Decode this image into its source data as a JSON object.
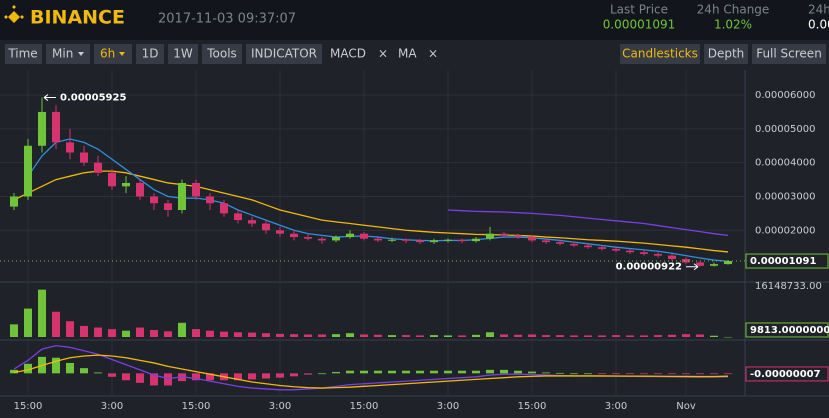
{
  "header": {
    "logo": "BINANCE",
    "datetime": "2017-11-03 09:37:07",
    "stats": [
      {
        "label": "Last Price",
        "value": "0.00001091"
      },
      {
        "label": "24h Change",
        "value": "1.02%"
      },
      {
        "label": "24h",
        "value": "0.000"
      }
    ]
  },
  "toolbar": {
    "left": [
      "Time",
      "Min",
      "6h",
      "1D",
      "1W",
      "Tools",
      "INDICATOR",
      "MACD",
      "×",
      "MA",
      "×"
    ],
    "right": [
      "Candlesticks",
      "Depth",
      "Full Screen"
    ]
  },
  "chart_data": [
    {
      "type": "candlestick",
      "categories": [
        null,
        "15:00",
        null,
        null,
        null,
        null,
        null,
        "3:00",
        null,
        null,
        null,
        null,
        null,
        "15:00",
        null,
        null,
        null,
        null,
        null,
        "3:00",
        null,
        null,
        null,
        null,
        null,
        "15:00",
        null,
        null,
        null,
        null,
        null,
        "3:00",
        null,
        null,
        null,
        null,
        null,
        "15:00",
        null,
        null,
        null,
        null,
        null,
        "3:00",
        null,
        null,
        null,
        null,
        "Nov",
        null,
        null,
        null
      ],
      "open": [
        2.7e-05,
        3e-05,
        4.5e-05,
        5.5e-05,
        4.6e-05,
        4.3e-05,
        4e-05,
        3.7e-05,
        3.3e-05,
        3.4e-05,
        3e-05,
        2.8e-05,
        2.6e-05,
        3.4e-05,
        3e-05,
        2.8e-05,
        2.5e-05,
        2.3e-05,
        2.2e-05,
        2e-05,
        1.9e-05,
        1.8e-05,
        1.75e-05,
        1.7e-05,
        1.8e-05,
        1.9e-05,
        1.75e-05,
        1.7e-05,
        1.72e-05,
        1.7e-05,
        1.65e-05,
        1.7e-05,
        1.72e-05,
        1.68e-05,
        1.75e-05,
        1.9e-05,
        1.85e-05,
        1.8e-05,
        1.7e-05,
        1.65e-05,
        1.6e-05,
        1.55e-05,
        1.5e-05,
        1.45e-05,
        1.4e-05,
        1.35e-05,
        1.3e-05,
        1.25e-05,
        1.15e-05,
        1.05e-05,
        9.5e-06,
        1e-05
      ],
      "high": [
        3.1e-05,
        4.7e-05,
        5.925e-05,
        5.7e-05,
        5e-05,
        4.5e-05,
        4.2e-05,
        3.8e-05,
        3.6e-05,
        3.5e-05,
        3.1e-05,
        2.9e-05,
        3.5e-05,
        3.5e-05,
        3.1e-05,
        2.9e-05,
        2.6e-05,
        2.4e-05,
        2.3e-05,
        2.1e-05,
        2e-05,
        1.9e-05,
        1.8e-05,
        1.85e-05,
        2e-05,
        1.95e-05,
        1.8e-05,
        1.78e-05,
        1.76e-05,
        1.74e-05,
        1.75e-05,
        1.76e-05,
        1.75e-05,
        1.8e-05,
        2.1e-05,
        1.95e-05,
        1.9e-05,
        1.85e-05,
        1.75e-05,
        1.7e-05,
        1.65e-05,
        1.6e-05,
        1.55e-05,
        1.5e-05,
        1.45e-05,
        1.4e-05,
        1.35e-05,
        1.3e-05,
        1.2e-05,
        1.08e-05,
        1.05e-05,
        1.12e-05
      ],
      "low": [
        2.6e-05,
        2.9e-05,
        4.3e-05,
        4.4e-05,
        4.1e-05,
        3.9e-05,
        3.6e-05,
        3.2e-05,
        3.1e-05,
        2.9e-05,
        2.6e-05,
        2.4e-05,
        2.5e-05,
        2.9e-05,
        2.6e-05,
        2.4e-05,
        2.2e-05,
        2.1e-05,
        1.9e-05,
        1.8e-05,
        1.7e-05,
        1.7e-05,
        1.6e-05,
        1.65e-05,
        1.75e-05,
        1.7e-05,
        1.65e-05,
        1.65e-05,
        1.62e-05,
        1.6e-05,
        1.6e-05,
        1.64e-05,
        1.62e-05,
        1.64e-05,
        1.7e-05,
        1.8e-05,
        1.75e-05,
        1.65e-05,
        1.6e-05,
        1.55e-05,
        1.5e-05,
        1.45e-05,
        1.4e-05,
        1.35e-05,
        1.3e-05,
        1.25e-05,
        1.2e-05,
        1.1e-05,
        1e-05,
        9.22e-06,
        9.3e-06,
        9.8e-06
      ],
      "close": [
        3e-05,
        4.5e-05,
        5.5e-05,
        4.6e-05,
        4.3e-05,
        4e-05,
        3.7e-05,
        3.3e-05,
        3.4e-05,
        3e-05,
        2.8e-05,
        2.6e-05,
        3.4e-05,
        3e-05,
        2.8e-05,
        2.5e-05,
        2.3e-05,
        2.2e-05,
        2e-05,
        1.9e-05,
        1.8e-05,
        1.75e-05,
        1.7e-05,
        1.8e-05,
        1.9e-05,
        1.75e-05,
        1.7e-05,
        1.72e-05,
        1.7e-05,
        1.65e-05,
        1.7e-05,
        1.72e-05,
        1.68e-05,
        1.75e-05,
        1.9e-05,
        1.85e-05,
        1.8e-05,
        1.7e-05,
        1.65e-05,
        1.6e-05,
        1.55e-05,
        1.5e-05,
        1.45e-05,
        1.4e-05,
        1.35e-05,
        1.3e-05,
        1.25e-05,
        1.15e-05,
        1.05e-05,
        9.5e-06,
        1e-05,
        1.091e-05
      ],
      "up_color": "#6fc43a",
      "down_color": "#d6336f",
      "series": [
        {
          "color": "#f0b90b",
          "values": [
            2.9e-05,
            3.1e-05,
            3.3e-05,
            3.5e-05,
            3.6e-05,
            3.7e-05,
            3.75e-05,
            3.75e-05,
            3.7e-05,
            3.6e-05,
            3.5e-05,
            3.4e-05,
            3.35e-05,
            3.3e-05,
            3.2e-05,
            3.1e-05,
            3e-05,
            2.9e-05,
            2.75e-05,
            2.6e-05,
            2.5e-05,
            2.4e-05,
            2.3e-05,
            2.25e-05,
            2.2e-05,
            2.15e-05,
            2.1e-05,
            2.05e-05,
            2e-05,
            1.97e-05,
            1.94e-05,
            1.92e-05,
            1.9e-05,
            1.88e-05,
            1.87e-05,
            1.86e-05,
            1.85e-05,
            1.83e-05,
            1.8e-05,
            1.78e-05,
            1.75e-05,
            1.72e-05,
            1.7e-05,
            1.68e-05,
            1.65e-05,
            1.62e-05,
            1.58e-05,
            1.54e-05,
            1.5e-05,
            1.45e-05,
            1.4e-05,
            1.36e-05
          ]
        },
        {
          "color": "#2f8fe0",
          "values": [
            null,
            3.6e-05,
            4.2e-05,
            4.6e-05,
            4.7e-05,
            4.6e-05,
            4.4e-05,
            4.1e-05,
            3.8e-05,
            3.5e-05,
            3.2e-05,
            3e-05,
            2.95e-05,
            2.95e-05,
            2.9e-05,
            2.8e-05,
            2.6e-05,
            2.45e-05,
            2.3e-05,
            2.15e-05,
            2e-05,
            1.9e-05,
            1.85e-05,
            1.8e-05,
            1.82e-05,
            1.83e-05,
            1.8e-05,
            1.75e-05,
            1.72e-05,
            1.7e-05,
            1.69e-05,
            1.7e-05,
            1.7e-05,
            1.72e-05,
            1.76e-05,
            1.8e-05,
            1.8e-05,
            1.78e-05,
            1.74e-05,
            1.7e-05,
            1.65e-05,
            1.6e-05,
            1.55e-05,
            1.5e-05,
            1.46e-05,
            1.42e-05,
            1.38e-05,
            1.32e-05,
            1.25e-05,
            1.18e-05,
            1.12e-05,
            1.08e-05
          ]
        },
        {
          "color": "#7b3fe4",
          "values": [
            null,
            null,
            null,
            null,
            null,
            null,
            null,
            null,
            null,
            null,
            null,
            null,
            null,
            null,
            null,
            null,
            null,
            null,
            null,
            null,
            null,
            null,
            null,
            null,
            null,
            null,
            null,
            null,
            null,
            null,
            null,
            2.6e-05,
            2.58e-05,
            2.56e-05,
            2.55e-05,
            2.54e-05,
            2.52e-05,
            2.5e-05,
            2.47e-05,
            2.44e-05,
            2.4e-05,
            2.36e-05,
            2.32e-05,
            2.28e-05,
            2.24e-05,
            2.2e-05,
            2.14e-05,
            2.08e-05,
            2.02e-05,
            1.96e-05,
            1.9e-05,
            1.85e-05
          ]
        }
      ],
      "ylim": [
        5.3e-06,
        6.74e-05
      ],
      "yticks": [
        {
          "value": 2e-05,
          "label": "0.00002000"
        },
        {
          "value": 3e-05,
          "label": "0.00003000"
        },
        {
          "value": 4e-05,
          "label": "0.00004000"
        },
        {
          "value": 5e-05,
          "label": "0.00005000"
        },
        {
          "value": 6e-05,
          "label": "0.00006000"
        }
      ],
      "annotations": [
        {
          "value": 5.925e-05,
          "label": "0.00005925"
        },
        {
          "value": 9.22e-06,
          "label": "0.00000922"
        }
      ],
      "last_label": {
        "value": 1.091e-05,
        "label": "0.00001091"
      },
      "grid": true
    },
    {
      "type": "bar",
      "values": [
        4000000,
        9000000,
        15000000,
        8000000,
        5000000,
        3500000,
        3000000,
        2500000,
        2000000,
        3000000,
        2200000,
        1800000,
        4500000,
        2500000,
        2000000,
        1700000,
        1500000,
        1400000,
        1200000,
        1000000,
        900000,
        800000,
        800000,
        900000,
        1200000,
        800000,
        700000,
        600000,
        600000,
        500000,
        600000,
        500000,
        500000,
        700000,
        1500000,
        800000,
        700000,
        800000,
        600000,
        600000,
        500000,
        500000,
        500000,
        600000,
        500000,
        500000,
        600000,
        700000,
        900000,
        800000,
        400000,
        9813
      ],
      "ylim": [
        0,
        16148733
      ],
      "yticks": [
        {
          "value": 16148733,
          "label": "16148733.00"
        }
      ],
      "last_label": {
        "value": 9813,
        "label": "9813.0000000"
      }
    },
    {
      "type": "macd",
      "histogram": [
        4e-07,
        1.1e-06,
        1.9e-06,
        1.8e-06,
        1.2e-06,
        6e-07,
        1e-07,
        -4e-07,
        -8e-07,
        -1.1e-06,
        -1.4e-06,
        -1.4e-06,
        -9e-07,
        -8e-07,
        -8e-07,
        -8e-07,
        -8e-07,
        -7e-07,
        -6e-07,
        -5e-07,
        -3.5e-07,
        -1.5e-07,
        0,
        1.5e-07,
        3e-07,
        3e-07,
        3e-07,
        3e-07,
        3e-07,
        3e-07,
        3e-07,
        3e-07,
        3e-07,
        3e-07,
        4e-07,
        4e-07,
        3e-07,
        2e-07,
        1e-07,
        5e-08,
        0,
        0,
        -2e-08,
        -2e-08,
        -3e-08,
        -3e-08,
        -4e-08,
        -5e-08,
        -6e-08,
        -7e-08,
        -5e-08,
        -7e-08
      ],
      "series": [
        {
          "color": "#7b3fe4",
          "values": [
            5e-07,
            1.5e-06,
            2.8e-06,
            3.2e-06,
            3e-06,
            2.6e-06,
            2.2e-06,
            1.6e-06,
            1e-06,
            4e-07,
            -2e-07,
            -6e-07,
            -4e-07,
            -6e-07,
            -9e-07,
            -1.2e-06,
            -1.5e-06,
            -1.7e-06,
            -1.8e-06,
            -1.9e-06,
            -1.9e-06,
            -1.8e-06,
            -1.7e-06,
            -1.5e-06,
            -1.3e-06,
            -1.2e-06,
            -1.1e-06,
            -1e-06,
            -9e-07,
            -8e-07,
            -7e-07,
            -6e-07,
            -5e-07,
            -4e-07,
            -2e-07,
            -1e-07,
            -1e-07,
            -1.5e-07,
            -2e-07,
            -2.5e-07,
            -3e-07,
            -3e-07,
            -3.2e-07,
            -3.3e-07,
            -3.5e-07,
            -3.6e-07,
            -3.8e-07,
            -4e-07,
            -4.2e-07,
            -4.4e-07,
            -4.2e-07,
            -4e-07
          ]
        },
        {
          "color": "#f0b90b",
          "values": [
            1e-07,
            4e-07,
            9e-07,
            1.4e-06,
            1.8e-06,
            2e-06,
            2.1e-06,
            2e-06,
            1.8e-06,
            1.5e-06,
            1.2e-06,
            8e-07,
            5e-07,
            2e-07,
            -1e-07,
            -4e-07,
            -7e-07,
            -1e-06,
            -1.2e-06,
            -1.4e-06,
            -1.55e-06,
            -1.65e-06,
            -1.7e-06,
            -1.65e-06,
            -1.6e-06,
            -1.5e-06,
            -1.4e-06,
            -1.3e-06,
            -1.2e-06,
            -1.1e-06,
            -1e-06,
            -9e-07,
            -8e-07,
            -7e-07,
            -6e-07,
            -5e-07,
            -4e-07,
            -3.5e-07,
            -3e-07,
            -3e-07,
            -3e-07,
            -3e-07,
            -3e-07,
            -3.1e-07,
            -3.2e-07,
            -3.3e-07,
            -3.4e-07,
            -3.5e-07,
            -3.6e-07,
            -3.7e-07,
            -3.7e-07,
            -3.3e-07
          ]
        }
      ],
      "up_color": "#6fc43a",
      "down_color": "#d6336f",
      "ylim": [
        -2.5e-06,
        3.5e-06
      ],
      "last_label": {
        "value": -7e-08,
        "label": "-0.00000007"
      }
    }
  ]
}
